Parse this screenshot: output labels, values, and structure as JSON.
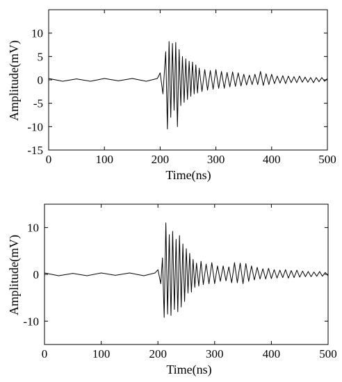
{
  "chart_data": [
    {
      "type": "line",
      "title": "",
      "xlabel": "Time(ns)",
      "ylabel": "Amplitude(mV)",
      "xlim": [
        0,
        500
      ],
      "ylim": [
        -15,
        15
      ],
      "xticks": [
        0,
        100,
        200,
        300,
        400,
        500
      ],
      "yticks": [
        -15,
        -10,
        -5,
        0,
        5,
        10
      ],
      "grid": false,
      "legend": "none",
      "color": "#000000",
      "series": [
        {
          "x": [
            0,
            25,
            50,
            75,
            100,
            125,
            150,
            175,
            195,
            200,
            205,
            210,
            213,
            216,
            219,
            222,
            225,
            228,
            231,
            234,
            237,
            240,
            243,
            246,
            249,
            252,
            255,
            258,
            261,
            264,
            267,
            270,
            275,
            280,
            285,
            290,
            295,
            300,
            305,
            310,
            315,
            320,
            325,
            330,
            335,
            340,
            345,
            350,
            355,
            360,
            365,
            370,
            375,
            380,
            385,
            390,
            395,
            400,
            405,
            410,
            415,
            420,
            425,
            430,
            435,
            440,
            445,
            450,
            455,
            460,
            465,
            470,
            475,
            480,
            485,
            490,
            495,
            500
          ],
          "y": [
            0.3,
            -0.3,
            0.2,
            -0.3,
            0.3,
            -0.2,
            0.3,
            -0.3,
            0.3,
            1.5,
            -3,
            6,
            -10.5,
            8.2,
            -8,
            7.8,
            -6.5,
            8,
            -10,
            6.5,
            -5.5,
            5,
            -4.8,
            4.5,
            -4.2,
            4,
            -3.5,
            3.8,
            -3,
            3.2,
            -2.8,
            2.5,
            -2.5,
            2.2,
            -2.2,
            2,
            -2,
            2.2,
            -1.8,
            1.8,
            -1.8,
            1.6,
            -1.5,
            1.7,
            -1.4,
            1.5,
            -1.3,
            1.2,
            -1.1,
            1,
            -1,
            1.2,
            -1,
            1.8,
            -1.2,
            1.3,
            -1,
            1.2,
            -0.8,
            0.8,
            -0.7,
            0.9,
            -0.8,
            0.8,
            -0.6,
            0.7,
            -0.6,
            0.8,
            -0.5,
            0.6,
            -0.5,
            0.5,
            -0.6,
            0.5,
            -0.4,
            0.5,
            -0.3,
            0.3
          ]
        }
      ]
    },
    {
      "type": "line",
      "title": "",
      "xlabel": "Time(ns)",
      "ylabel": "Amplitude(mV)",
      "xlim": [
        0,
        500
      ],
      "ylim": [
        -15,
        15
      ],
      "xticks": [
        0,
        100,
        200,
        300,
        400,
        500
      ],
      "yticks": [
        -10,
        0,
        10
      ],
      "grid": false,
      "legend": "none",
      "color": "#000000",
      "series": [
        {
          "x": [
            0,
            25,
            50,
            75,
            100,
            125,
            150,
            175,
            195,
            200,
            205,
            208,
            211,
            214,
            217,
            220,
            223,
            226,
            229,
            232,
            235,
            238,
            241,
            244,
            247,
            250,
            253,
            256,
            259,
            262,
            265,
            268,
            272,
            276,
            280,
            285,
            290,
            295,
            300,
            305,
            310,
            315,
            320,
            325,
            330,
            335,
            340,
            345,
            350,
            355,
            360,
            365,
            370,
            375,
            380,
            385,
            390,
            395,
            400,
            405,
            410,
            415,
            420,
            425,
            430,
            435,
            440,
            445,
            450,
            455,
            460,
            465,
            470,
            475,
            480,
            485,
            490,
            495,
            500
          ],
          "y": [
            0.3,
            -0.3,
            0.2,
            -0.3,
            0.3,
            -0.2,
            0.3,
            -0.3,
            0.3,
            1,
            -2,
            3.5,
            -9.2,
            11,
            -8.5,
            8.5,
            -8.8,
            9.2,
            -7.5,
            7.5,
            -8,
            8.3,
            -7,
            6.5,
            -5.8,
            5.5,
            -4,
            4.5,
            -3.8,
            3.2,
            -2.8,
            2.4,
            -2.5,
            2.8,
            -2.2,
            2.2,
            -2,
            2.5,
            -2,
            1.8,
            -1.5,
            1.8,
            -1.4,
            1.6,
            -1.8,
            2.5,
            -1.8,
            2.4,
            -2,
            2.3,
            -1.5,
            1.8,
            -1.2,
            1.5,
            -1,
            1.2,
            -1,
            1.3,
            -0.9,
            1,
            -0.8,
            0.9,
            -0.7,
            1,
            -0.8,
            0.8,
            -0.7,
            0.9,
            -0.6,
            0.7,
            -0.5,
            0.6,
            -0.5,
            0.5,
            -0.4,
            0.6,
            -0.4,
            0.4,
            -0.3
          ]
        }
      ]
    }
  ]
}
